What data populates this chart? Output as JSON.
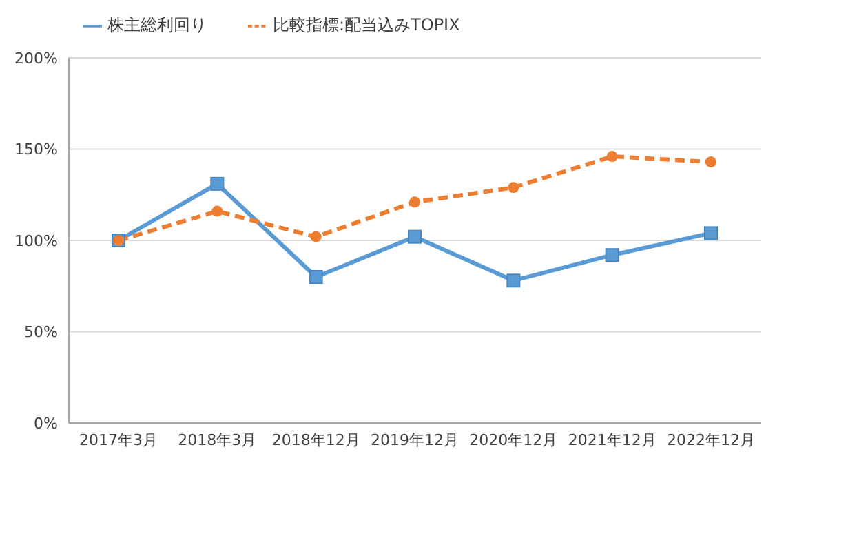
{
  "chart_data": {
    "type": "line",
    "categories": [
      "2017年3月",
      "2018年3月",
      "2018年12月",
      "2019年12月",
      "2020年12月",
      "2021年12月",
      "2022年12月"
    ],
    "series": [
      {
        "name": "株主総利回り",
        "color": "#5b9bd5",
        "marker": "square",
        "line_style": "solid",
        "values": [
          100,
          131,
          80,
          102,
          78,
          92,
          104
        ]
      },
      {
        "name": "比較指標:配当込みTOPIX",
        "color": "#ed7d31",
        "marker": "circle",
        "line_style": "dashed",
        "values": [
          100,
          116,
          102,
          121,
          129,
          146,
          143
        ]
      }
    ],
    "ylim": [
      0,
      200
    ],
    "yticks": [
      {
        "value": 0,
        "label": "0%"
      },
      {
        "value": 50,
        "label": "50%"
      },
      {
        "value": 100,
        "label": "100%"
      },
      {
        "value": 150,
        "label": "150%"
      },
      {
        "value": 200,
        "label": "200%"
      }
    ],
    "grid": "y",
    "legend": "top left"
  }
}
